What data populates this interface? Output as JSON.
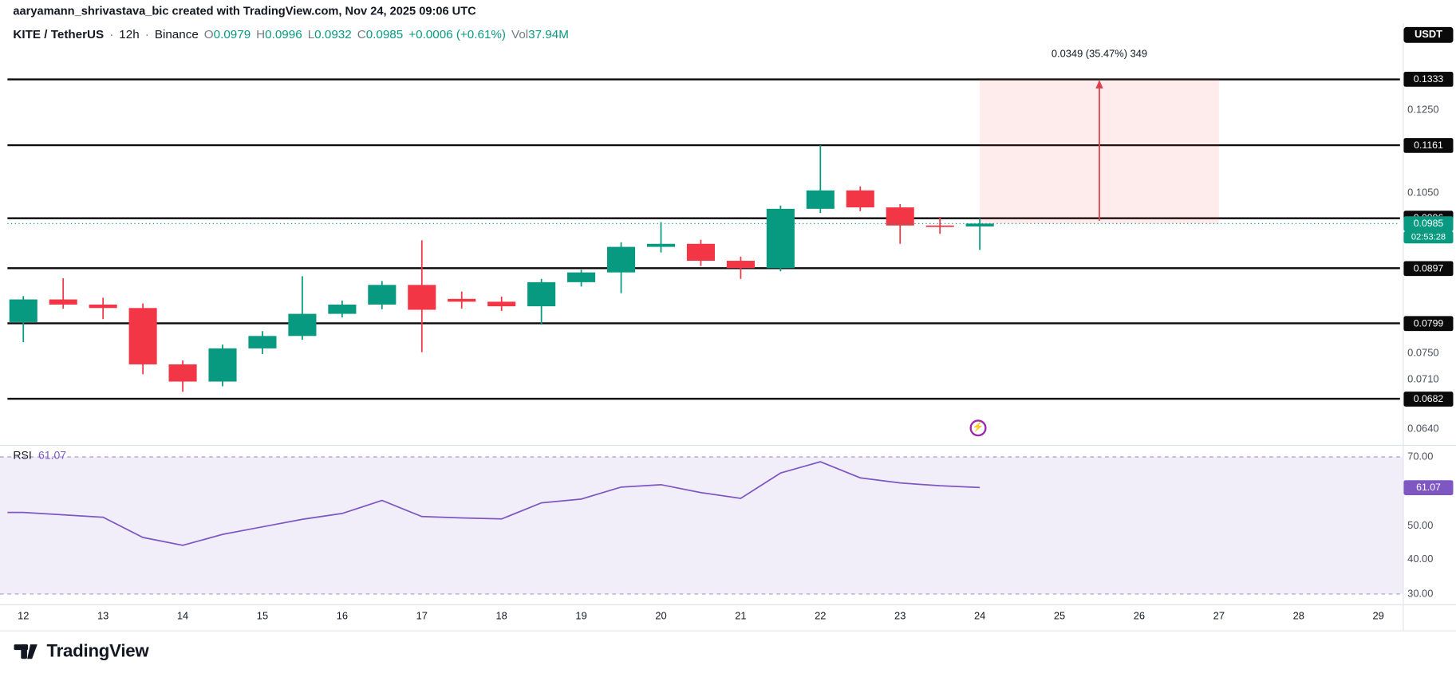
{
  "attribution": "aaryamann_shrivastava_bic created with TradingView.com, Nov 24, 2025 09:06 UTC",
  "header": {
    "symbol": "KITE / TetherUS",
    "separator": "·",
    "interval": "12h",
    "exchange": "Binance",
    "ohlc": {
      "o_label": "O",
      "o": "0.0979",
      "h_label": "H",
      "h": "0.0996",
      "l_label": "L",
      "l": "0.0932",
      "c_label": "C",
      "c": "0.0985",
      "change": "+0.0006 (+0.61%)",
      "vol_label": "Vol",
      "vol": "37.94M"
    },
    "currency_badge": "USDT"
  },
  "colors": {
    "up": "#089981",
    "down": "#f23645",
    "rsi_line": "#7e57c2",
    "level_line": "#0a0a0a",
    "badge_dark_bg": "#0a0a0a",
    "projection_fill": "rgba(242,54,69,0.10)",
    "projection_arrow": "#e03e4e",
    "text": "#131722",
    "muted": "#787b86",
    "axis_border": "#e0e3eb",
    "rsi_band_fill": "rgba(126,87,194,0.10)",
    "rsi_band_line": "#a79bc8"
  },
  "chart_data": [
    {
      "type": "candlestick",
      "symbol": "KITE/USDT",
      "interval": "12h",
      "scale": "log",
      "columns": [
        "time",
        "open",
        "high",
        "low",
        "close"
      ],
      "candles": [
        [
          "Nov 12 00:00",
          0.0801,
          0.0846,
          0.0768,
          0.084
        ],
        [
          "Nov 12 12:00",
          0.084,
          0.0878,
          0.0824,
          0.0831
        ],
        [
          "Nov 13 00:00",
          0.0831,
          0.0843,
          0.0806,
          0.0825
        ],
        [
          "Nov 13 12:00",
          0.0825,
          0.0833,
          0.0718,
          0.0733
        ],
        [
          "Nov 14 00:00",
          0.0733,
          0.0739,
          0.0692,
          0.0707
        ],
        [
          "Nov 14 12:00",
          0.0707,
          0.0764,
          0.07,
          0.0758
        ],
        [
          "Nov 15 00:00",
          0.0758,
          0.0786,
          0.0749,
          0.0778
        ],
        [
          "Nov 15 12:00",
          0.0778,
          0.0882,
          0.0772,
          0.0815
        ],
        [
          "Nov 16 00:00",
          0.0815,
          0.0838,
          0.0809,
          0.0831
        ],
        [
          "Nov 16 12:00",
          0.0831,
          0.0873,
          0.0823,
          0.0866
        ],
        [
          "Nov 17 00:00",
          0.0866,
          0.0951,
          0.0752,
          0.0822
        ],
        [
          "Nov 17 12:00",
          0.0841,
          0.0854,
          0.0824,
          0.0836
        ],
        [
          "Nov 18 00:00",
          0.0836,
          0.0845,
          0.082,
          0.0828
        ],
        [
          "Nov 18 12:00",
          0.0828,
          0.0877,
          0.0797,
          0.0871
        ],
        [
          "Nov 19 00:00",
          0.0871,
          0.0894,
          0.0863,
          0.0889
        ],
        [
          "Nov 19 12:00",
          0.0889,
          0.0947,
          0.0851,
          0.0938
        ],
        [
          "Nov 20 00:00",
          0.0938,
          0.0988,
          0.0927,
          0.0944
        ],
        [
          "Nov 20 12:00",
          0.0944,
          0.0952,
          0.0901,
          0.0911
        ],
        [
          "Nov 21 00:00",
          0.0911,
          0.0919,
          0.0877,
          0.0897
        ],
        [
          "Nov 21 12:00",
          0.0897,
          0.1023,
          0.0891,
          0.1016
        ],
        [
          "Nov 22 00:00",
          0.1016,
          0.1161,
          0.1007,
          0.1056
        ],
        [
          "Nov 22 12:00",
          0.1056,
          0.1065,
          0.1011,
          0.1019
        ],
        [
          "Nov 23 00:00",
          0.1019,
          0.1026,
          0.0944,
          0.0981
        ],
        [
          "Nov 23 12:00",
          0.0981,
          0.0999,
          0.0964,
          0.0978
        ],
        [
          "Nov 24 00:00",
          0.0979,
          0.0996,
          0.0932,
          0.0985
        ]
      ],
      "levels": [
        "0.1333",
        "0.1161",
        "0.0996",
        "0.0897",
        "0.0799",
        "0.0682"
      ],
      "last_price": 0.0985
    },
    {
      "type": "line",
      "name": "RSI",
      "overbought": 70,
      "oversold": 30,
      "last": 61.07,
      "values": [
        53.8,
        53.1,
        52.4,
        46.5,
        44.2,
        47.4,
        49.6,
        51.8,
        53.5,
        57.3,
        52.6,
        52.2,
        51.9,
        56.6,
        57.7,
        61.2,
        61.9,
        59.6,
        57.9,
        65.3,
        68.6,
        63.9,
        62.4,
        61.6,
        61.07
      ]
    }
  ],
  "price_axis": {
    "plain_labels": [
      "0.1250",
      "0.1050",
      "0.0750",
      "0.0710",
      "0.0640"
    ],
    "last_price_label": "0.0985",
    "countdown": "02:53:28"
  },
  "rsi_pane": {
    "label": "RSI",
    "value": "61.07",
    "axis_labels": [
      "70.00",
      "50.00",
      "40.00",
      "30.00"
    ]
  },
  "projection": {
    "label": "0.0349 (35.47%) 349",
    "from_price": 0.0985,
    "to_price": 0.1334,
    "from_day": 24,
    "to_day": 27
  },
  "time_axis": {
    "labels": [
      "12",
      "13",
      "14",
      "15",
      "16",
      "17",
      "18",
      "19",
      "20",
      "21",
      "22",
      "23",
      "24",
      "25",
      "26",
      "27",
      "28",
      "29"
    ]
  },
  "icons": {
    "flash_glyph": "⚡"
  },
  "footer": {
    "brand": "TradingView"
  }
}
